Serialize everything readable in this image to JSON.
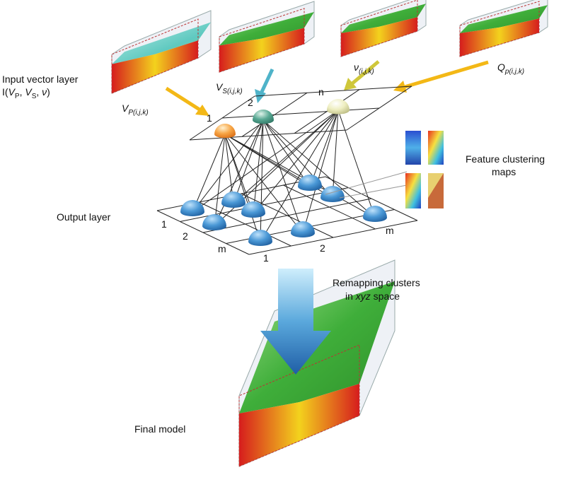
{
  "input_layer": {
    "title": "Input vector layer",
    "formula": [
      "I(",
      "V",
      "P",
      ", ",
      "V",
      "S",
      ", ",
      "ν",
      ")"
    ]
  },
  "inputs": [
    {
      "symbol": "V",
      "subscript": "P(i,j,k)"
    },
    {
      "symbol": "V",
      "subscript": "S(i,j,k)"
    },
    {
      "symbol": "ν",
      "subscript": "(i,j,k)"
    },
    {
      "symbol": "Q",
      "subscript": "p(i,j,k)"
    }
  ],
  "input_nodes": [
    "1",
    "2",
    "n"
  ],
  "feature_maps": [
    "Feature clustering",
    "maps"
  ],
  "output_layer": {
    "title": "Output layer",
    "left_labels": [
      "1",
      "2",
      "m"
    ],
    "front_labels": [
      "1",
      "2",
      "m"
    ]
  },
  "remapping": {
    "line1": "Remapping clusters",
    "line2": [
      "in ",
      "xyz",
      " space"
    ]
  },
  "final_model": "Final model"
}
